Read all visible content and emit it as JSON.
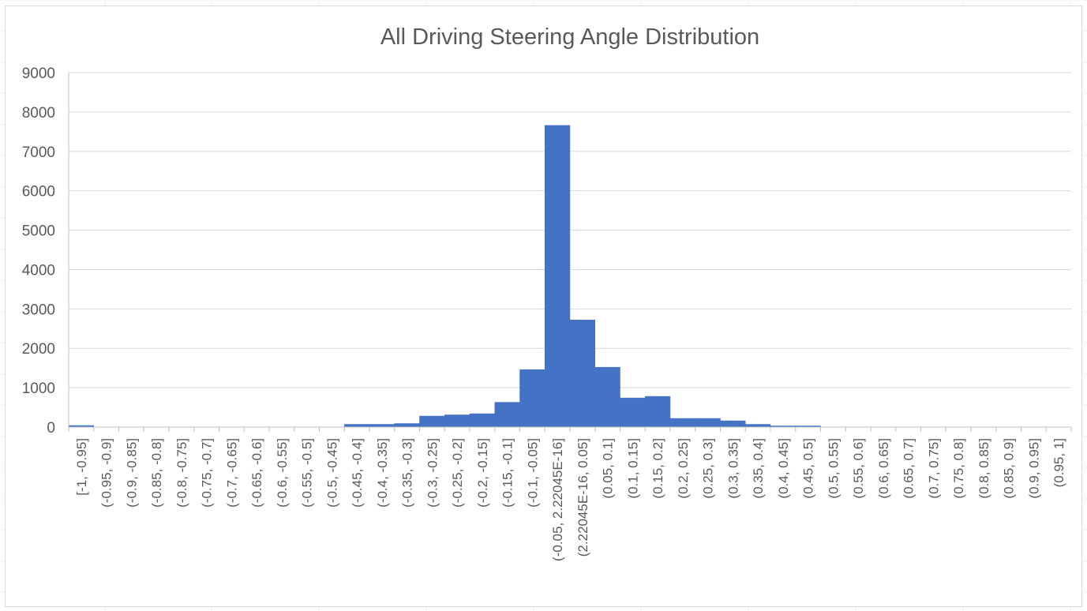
{
  "chart_data": {
    "type": "bar",
    "title": "All Driving Steering Angle Distribution",
    "xlabel": "",
    "ylabel": "",
    "ylim": [
      0,
      9000
    ],
    "yticks": [
      0,
      1000,
      2000,
      3000,
      4000,
      5000,
      6000,
      7000,
      8000,
      9000
    ],
    "grid": true,
    "legend": "none",
    "bar_color": "#4472c4",
    "categories": [
      "[-1, -0.95]",
      "(-0.95, -0.9]",
      "(-0.9, -0.85]",
      "(-0.85, -0.8]",
      "(-0.8, -0.75]",
      "(-0.75, -0.7]",
      "(-0.7, -0.65]",
      "(-0.65, -0.6]",
      "(-0.6, -0.55]",
      "(-0.55, -0.5]",
      "(-0.5, -0.45]",
      "(-0.45, -0.4]",
      "(-0.4, -0.35]",
      "(-0.35, -0.3]",
      "(-0.3, -0.25]",
      "(-0.25, -0.2]",
      "(-0.2, -0.15]",
      "(-0.15, -0.1]",
      "(-0.1, -0.05]",
      "(-0.05, 2.22045E-16]",
      "(2.22045E-16, 0.05]",
      "(0.05, 0.1]",
      "(0.1, 0.15]",
      "(0.15, 0.2]",
      "(0.2, 0.25]",
      "(0.25, 0.3]",
      "(0.3, 0.35]",
      "(0.35, 0.4]",
      "(0.4, 0.45]",
      "(0.45, 0.5]",
      "(0.5, 0.55]",
      "(0.55, 0.6]",
      "(0.6, 0.65]",
      "(0.65, 0.7]",
      "(0.7, 0.75]",
      "(0.75, 0.8]",
      "(0.8, 0.85]",
      "(0.85, 0.9]",
      "(0.9, 0.95]",
      "(0.95, 1]"
    ],
    "values": [
      40,
      0,
      0,
      0,
      0,
      0,
      0,
      0,
      0,
      0,
      5,
      70,
      70,
      90,
      280,
      310,
      340,
      630,
      1460,
      7660,
      2720,
      1520,
      740,
      780,
      220,
      220,
      160,
      70,
      30,
      30,
      0,
      0,
      0,
      0,
      0,
      0,
      0,
      0,
      0,
      0
    ]
  }
}
